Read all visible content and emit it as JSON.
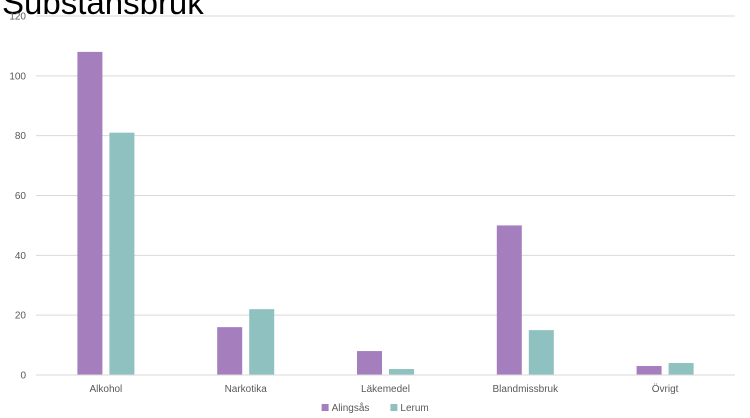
{
  "chart_data": {
    "type": "bar",
    "title": "Substansbruk",
    "xlabel": "",
    "ylabel": "",
    "categories": [
      "Alkohol",
      "Narkotika",
      "Läkemedel",
      "Blandmissbruk",
      "Övrigt"
    ],
    "series": [
      {
        "name": "Alingsås",
        "color": "#a57fbd",
        "values": [
          108,
          16,
          8,
          50,
          3
        ]
      },
      {
        "name": "Lerum",
        "color": "#8ec1bf",
        "values": [
          81,
          22,
          2,
          15,
          4
        ]
      }
    ],
    "ylim": [
      0,
      120
    ],
    "yticks": [
      0,
      20,
      40,
      60,
      80,
      100,
      120
    ],
    "grid": true,
    "gridColor": "#d9d9d9",
    "legend": "bottom-center"
  }
}
